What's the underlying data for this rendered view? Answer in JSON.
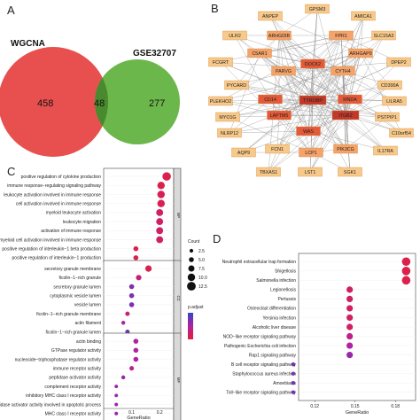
{
  "panels": {
    "A": "A",
    "B": "B",
    "C": "C",
    "D": "D"
  },
  "venn": {
    "left_label": "WGCNA",
    "right_label": "GSE32707",
    "left_only": "458",
    "overlap": "48",
    "right_only": "277",
    "left_color": "#e85050",
    "right_color": "#5fb13d",
    "overlap_color": "#4a8a2e"
  },
  "network": {
    "outer_color": "#f7c98a",
    "mid_color": "#f4a36a",
    "core_color": "#e35a3a",
    "hub_color": "#c0392b",
    "nodes": [
      {
        "label": "GPSM3",
        "tier": "outer"
      },
      {
        "label": "ANPEP",
        "tier": "outer"
      },
      {
        "label": "AMICA1",
        "tier": "outer"
      },
      {
        "label": "ULR2",
        "tier": "outer"
      },
      {
        "label": "ARHGDIB",
        "tier": "mid"
      },
      {
        "label": "FPR1",
        "tier": "mid"
      },
      {
        "label": "SLC15A3",
        "tier": "outer"
      },
      {
        "label": "C5AR1",
        "tier": "mid"
      },
      {
        "label": "ARHGAP9",
        "tier": "mid"
      },
      {
        "label": "FCGRT",
        "tier": "outer"
      },
      {
        "label": "DPEP2",
        "tier": "outer"
      },
      {
        "label": "PARVG",
        "tier": "mid"
      },
      {
        "label": "DOCK2",
        "tier": "core"
      },
      {
        "label": "CYTH4",
        "tier": "mid"
      },
      {
        "label": "PYCARD",
        "tier": "outer"
      },
      {
        "label": "CD300A",
        "tier": "outer"
      },
      {
        "label": "PLEKHO2",
        "tier": "outer"
      },
      {
        "label": "CD14",
        "tier": "core"
      },
      {
        "label": "TYROBP",
        "tier": "hub"
      },
      {
        "label": "MNDA",
        "tier": "core"
      },
      {
        "label": "LILRA5",
        "tier": "outer"
      },
      {
        "label": "MYO1G",
        "tier": "outer"
      },
      {
        "label": "LAPTM5",
        "tier": "core"
      },
      {
        "label": "ITGB2",
        "tier": "hub"
      },
      {
        "label": "PSTPIP1",
        "tier": "outer"
      },
      {
        "label": "NLRP12",
        "tier": "outer"
      },
      {
        "label": "WAS",
        "tier": "core"
      },
      {
        "label": "C10orf54",
        "tier": "outer"
      },
      {
        "label": "AQP9",
        "tier": "outer"
      },
      {
        "label": "FCN1",
        "tier": "outer"
      },
      {
        "label": "LCP1",
        "tier": "mid"
      },
      {
        "label": "PIK3CG",
        "tier": "mid"
      },
      {
        "label": "IL17RA",
        "tier": "outer"
      },
      {
        "label": "TBXAS1",
        "tier": "outer"
      },
      {
        "label": "LST1",
        "tier": "outer"
      },
      {
        "label": "SGK1",
        "tier": "outer"
      }
    ]
  },
  "dot_c": {
    "xlabel": "GeneRatio",
    "x_ticks": [
      "0.1",
      "0.2"
    ],
    "size_legend_title": "Count",
    "size_legend_items": [
      "2.5",
      "5.0",
      "7.5",
      "10.0",
      "12.5"
    ],
    "color_legend_title": "p.adjust",
    "groups": [
      {
        "facet": "BP",
        "terms": [
          {
            "label": "positive regulation of cytokine production",
            "ratio": 0.225,
            "count": 12,
            "p": 0.1
          },
          {
            "label": "immune response−regulating signaling pathway",
            "ratio": 0.205,
            "count": 10,
            "p": 0.1
          },
          {
            "label": "leukocyte activation involved in immune response",
            "ratio": 0.205,
            "count": 10,
            "p": 0.15
          },
          {
            "label": "cell activation involved in immune response",
            "ratio": 0.205,
            "count": 10,
            "p": 0.15
          },
          {
            "label": "myeloid leukocyte activation",
            "ratio": 0.2,
            "count": 9,
            "p": 0.2
          },
          {
            "label": "leukocyte migration",
            "ratio": 0.2,
            "count": 9,
            "p": 0.2
          },
          {
            "label": "activation of immune response",
            "ratio": 0.2,
            "count": 9,
            "p": 0.2
          },
          {
            "label": "myeloid cell activation involved in immune response",
            "ratio": 0.2,
            "count": 9,
            "p": 0.2
          },
          {
            "label": "positive regulation of interleukin−1 beta production",
            "ratio": 0.115,
            "count": 5,
            "p": 0.1
          },
          {
            "label": "positive regulation of interleukin−1 production",
            "ratio": 0.115,
            "count": 5,
            "p": 0.1
          }
        ]
      },
      {
        "facet": "CC",
        "terms": [
          {
            "label": "secretory granule membrane",
            "ratio": 0.16,
            "count": 8,
            "p": 0.1
          },
          {
            "label": "ficolin−1−rich granule",
            "ratio": 0.125,
            "count": 6,
            "p": 0.3
          },
          {
            "label": "secretory granule lumen",
            "ratio": 0.1,
            "count": 5,
            "p": 0.7
          },
          {
            "label": "cytoplasmic vesicle lumen",
            "ratio": 0.1,
            "count": 5,
            "p": 0.7
          },
          {
            "label": "vesicle lumen",
            "ratio": 0.1,
            "count": 5,
            "p": 0.7
          },
          {
            "label": "ficolin−1−rich granule membrane",
            "ratio": 0.085,
            "count": 4,
            "p": 0.3
          },
          {
            "label": "actin filament",
            "ratio": 0.07,
            "count": 3,
            "p": 0.5
          },
          {
            "label": "ficolin−1−rich granule lumen",
            "ratio": 0.085,
            "count": 4,
            "p": 0.75
          }
        ]
      },
      {
        "facet": "MF",
        "terms": [
          {
            "label": "actin binding",
            "ratio": 0.115,
            "count": 5,
            "p": 0.5
          },
          {
            "label": "GTPase regulator activity",
            "ratio": 0.115,
            "count": 5,
            "p": 0.5
          },
          {
            "label": "nucleoside−triphosphatase regulator activity",
            "ratio": 0.115,
            "count": 5,
            "p": 0.5
          },
          {
            "label": "immune receptor activity",
            "ratio": 0.1,
            "count": 4,
            "p": 0.4
          },
          {
            "label": "peptidase activator activity",
            "ratio": 0.07,
            "count": 3,
            "p": 0.6
          },
          {
            "label": "complement receptor activity",
            "ratio": 0.045,
            "count": 2,
            "p": 0.6
          },
          {
            "label": "inhibitory MHC class I receptor activity",
            "ratio": 0.045,
            "count": 2,
            "p": 0.6
          },
          {
            "label": "cysteine−type endopeptidase activator activity involved in apoptotic process",
            "ratio": 0.045,
            "count": 2,
            "p": 0.6
          },
          {
            "label": "MHC class I receptor activity",
            "ratio": 0.045,
            "count": 2,
            "p": 0.6
          },
          {
            "label": "cysteine−type endopeptidase activator activity involved in apoptotic process",
            "ratio": 0.045,
            "count": 2,
            "p": 0.6
          }
        ]
      }
    ]
  },
  "chart_data": [
    {
      "type": "scatter",
      "xlabel": "GeneRatio",
      "x_ticks": [
        "0.12",
        "0.15",
        "0.18"
      ],
      "xlim": [
        0.108,
        0.195
      ],
      "terms": [
        {
          "label": "Neutrophil extracellular trap formation",
          "ratio": 0.188,
          "p": 0.1
        },
        {
          "label": "Shigellosis",
          "ratio": 0.188,
          "p": 0.1
        },
        {
          "label": "Salmonella infection",
          "ratio": 0.188,
          "p": 0.1
        },
        {
          "label": "Legionellosis",
          "ratio": 0.146,
          "p": 0.2
        },
        {
          "label": "Pertussis",
          "ratio": 0.146,
          "p": 0.2
        },
        {
          "label": "Osteoclast differentiation",
          "ratio": 0.146,
          "p": 0.2
        },
        {
          "label": "Yersinia infection",
          "ratio": 0.146,
          "p": 0.2
        },
        {
          "label": "Alcoholic liver disease",
          "ratio": 0.146,
          "p": 0.2
        },
        {
          "label": "NOD−like receptor signaling pathway",
          "ratio": 0.146,
          "p": 0.4
        },
        {
          "label": "Pathogenic Escherichia coli infection",
          "ratio": 0.146,
          "p": 0.5
        },
        {
          "label": "Rap1 signaling pathway",
          "ratio": 0.146,
          "p": 0.6
        },
        {
          "label": "B cell receptor signaling pathway",
          "ratio": 0.104,
          "p": 0.75
        },
        {
          "label": "Staphylococcus aureus infection",
          "ratio": 0.104,
          "p": 0.75
        },
        {
          "label": "Amoebiasis",
          "ratio": 0.104,
          "p": 0.75
        },
        {
          "label": "Toll−like receptor signaling pathway",
          "ratio": 0.104,
          "p": 0.75
        }
      ]
    }
  ]
}
